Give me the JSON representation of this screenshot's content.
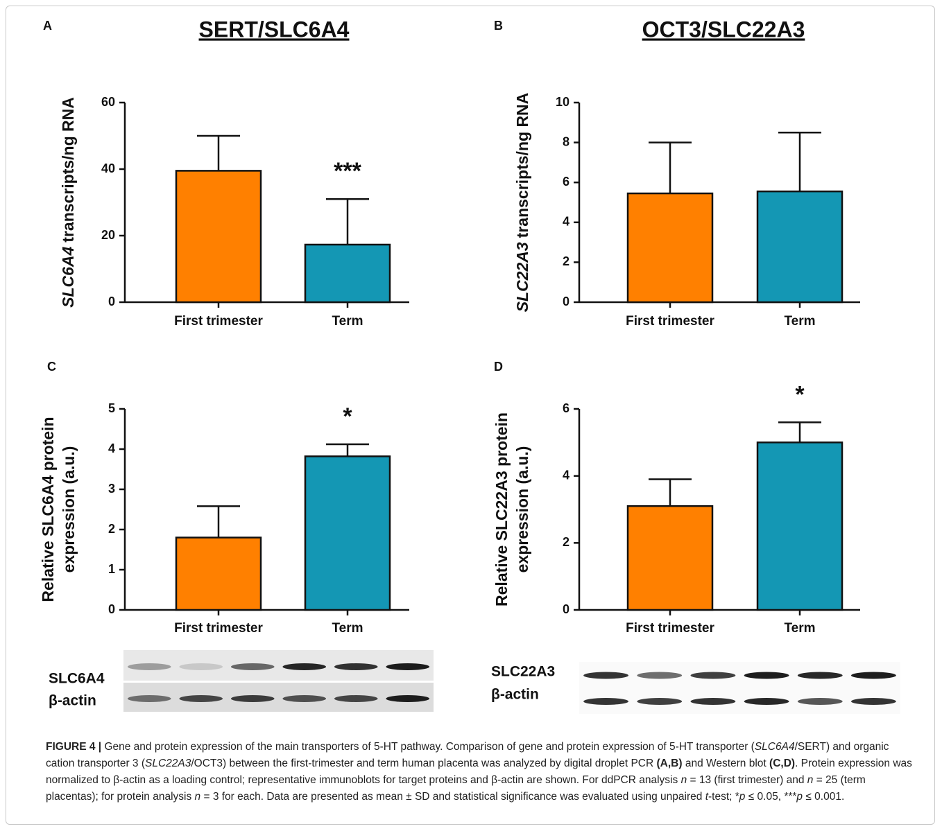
{
  "chart_data": [
    {
      "type": "bar",
      "panel": "A",
      "title": "SERT/SLC6A4",
      "ylabel": [
        {
          "text": "SLC6A4",
          "italic": true
        },
        {
          "text": "transcripts/ng RNA"
        }
      ],
      "categories": [
        "First trimester",
        "Term"
      ],
      "values": [
        39.5,
        17.3
      ],
      "errors": [
        10.5,
        13.7
      ],
      "colors": [
        "#ff8000",
        "#1497b4"
      ],
      "ylim": [
        0,
        60
      ],
      "yticks": [
        0,
        20,
        40,
        60
      ],
      "annotations": [
        {
          "text": "***",
          "x": "Term"
        }
      ]
    },
    {
      "type": "bar",
      "panel": "B",
      "title": "OCT3/SLC22A3",
      "ylabel": [
        {
          "text": "SLC22A3",
          "italic": true
        },
        {
          "text": "transcripts/ng RNA"
        }
      ],
      "categories": [
        "First trimester",
        "Term"
      ],
      "values": [
        5.45,
        5.55
      ],
      "errors": [
        2.55,
        2.95
      ],
      "colors": [
        "#ff8000",
        "#1497b4"
      ],
      "ylim": [
        0,
        10
      ],
      "yticks": [
        0,
        2,
        4,
        6,
        8,
        10
      ],
      "annotations": []
    },
    {
      "type": "bar",
      "panel": "C",
      "ylabel_lines": [
        "Relative SLC6A4 protein",
        "expression (a.u.)"
      ],
      "categories": [
        "First trimester",
        "Term"
      ],
      "values": [
        1.8,
        3.82
      ],
      "errors": [
        0.78,
        0.3
      ],
      "colors": [
        "#ff8000",
        "#1497b4"
      ],
      "ylim": [
        0,
        5
      ],
      "yticks": [
        0,
        1,
        2,
        3,
        4,
        5
      ],
      "annotations": [
        {
          "text": "*",
          "x": "Term"
        }
      ],
      "blot_labels": [
        "SLC6A4",
        "β-actin"
      ]
    },
    {
      "type": "bar",
      "panel": "D",
      "ylabel_lines": [
        "Relative SLC22A3 protein",
        "expression (a.u.)"
      ],
      "categories": [
        "First trimester",
        "Term"
      ],
      "values": [
        3.1,
        5.0
      ],
      "errors": [
        0.8,
        0.6
      ],
      "colors": [
        "#ff8000",
        "#1497b4"
      ],
      "ylim": [
        0,
        6
      ],
      "yticks": [
        0,
        2,
        4,
        6
      ],
      "annotations": [
        {
          "text": "*",
          "x": "Term"
        }
      ],
      "blot_labels": [
        "SLC22A3",
        "β-actin"
      ]
    }
  ],
  "caption": [
    {
      "text": "FIGURE 4 |",
      "style": "bold"
    },
    {
      "text": " Gene and protein expression of the main transporters of 5-HT pathway. Comparison of gene and protein expression of 5-HT transporter ("
    },
    {
      "text": "SLC6A4",
      "style": "italic"
    },
    {
      "text": "/SERT) and organic cation transporter 3 ("
    },
    {
      "text": "SLC22A3",
      "style": "italic"
    },
    {
      "text": "/OCT3) between the first-trimester and term human placenta was analyzed by digital droplet PCR "
    },
    {
      "text": "(A,B)",
      "style": "bold"
    },
    {
      "text": " and Western blot "
    },
    {
      "text": "(C,D)",
      "style": "bold"
    },
    {
      "text": ". Protein expression was normalized to β-actin as a loading control; representative immunoblots for target proteins and β-actin are shown. For ddPCR analysis "
    },
    {
      "text": "n",
      "style": "italic"
    },
    {
      "text": " = 13 (first trimester) and "
    },
    {
      "text": "n",
      "style": "italic"
    },
    {
      "text": " = 25 (term placentas); for protein analysis "
    },
    {
      "text": "n",
      "style": "italic"
    },
    {
      "text": " = 3 for each. Data are presented as mean ± SD and statistical significance was evaluated using unpaired "
    },
    {
      "text": "t",
      "style": "italic"
    },
    {
      "text": "-test; *"
    },
    {
      "text": "p",
      "style": "italic"
    },
    {
      "text": " ≤ 0.05, ***"
    },
    {
      "text": "p",
      "style": "italic"
    },
    {
      "text": " ≤ 0.001."
    }
  ]
}
